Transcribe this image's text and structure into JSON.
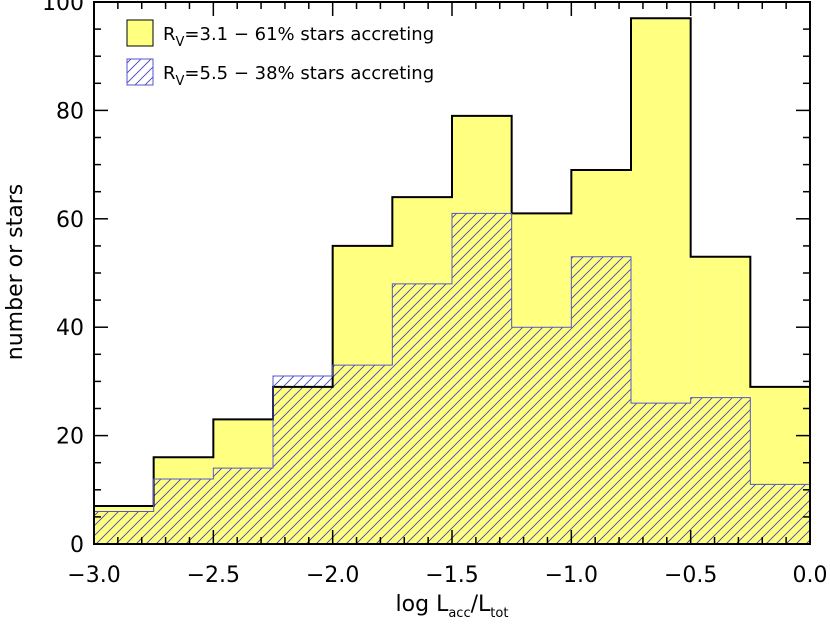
{
  "chart_data": {
    "type": "bar",
    "bin_edges": [
      -3.0,
      -2.75,
      -2.5,
      -2.25,
      -2.0,
      -1.75,
      -1.5,
      -1.25,
      -1.0,
      -0.75,
      -0.5,
      -0.25,
      0.0
    ],
    "series": [
      {
        "values": [
          7,
          16,
          23,
          29,
          55,
          64,
          79,
          61,
          69,
          97,
          53,
          29
        ],
        "fill": "#ffff80",
        "style": "filled"
      },
      {
        "values": [
          6,
          12,
          14,
          31,
          33,
          48,
          61,
          40,
          53,
          26,
          27,
          11
        ],
        "fill": "#5555cc",
        "style": "hatched"
      }
    ],
    "xlim": [
      -3.0,
      0.0
    ],
    "ylim": [
      0,
      100
    ],
    "xticks": [
      -3.0,
      -2.5,
      -2.0,
      -1.5,
      -1.0,
      -0.5,
      0.0
    ],
    "xtick_labels": [
      "−3.0",
      "−2.5",
      "−2.0",
      "−1.5",
      "−1.0",
      "−0.5",
      "0.0"
    ],
    "yticks": [
      0,
      20,
      40,
      60,
      80,
      100
    ],
    "ytick_labels": [
      "0",
      "20",
      "40",
      "60",
      "80",
      "100"
    ],
    "xlabel": {
      "main": "log L",
      "sub1": "acc",
      "slash": "/L",
      "sub2": "tot"
    },
    "ylabel": "number or stars",
    "legend": {
      "placement": "top-left",
      "entries": [
        {
          "prefix": "R",
          "sub": "V",
          "rest": "=3.1 − 61% stars accreting"
        },
        {
          "prefix": "R",
          "sub": "V",
          "rest": "=5.5 − 38% stars accreting"
        }
      ]
    }
  }
}
